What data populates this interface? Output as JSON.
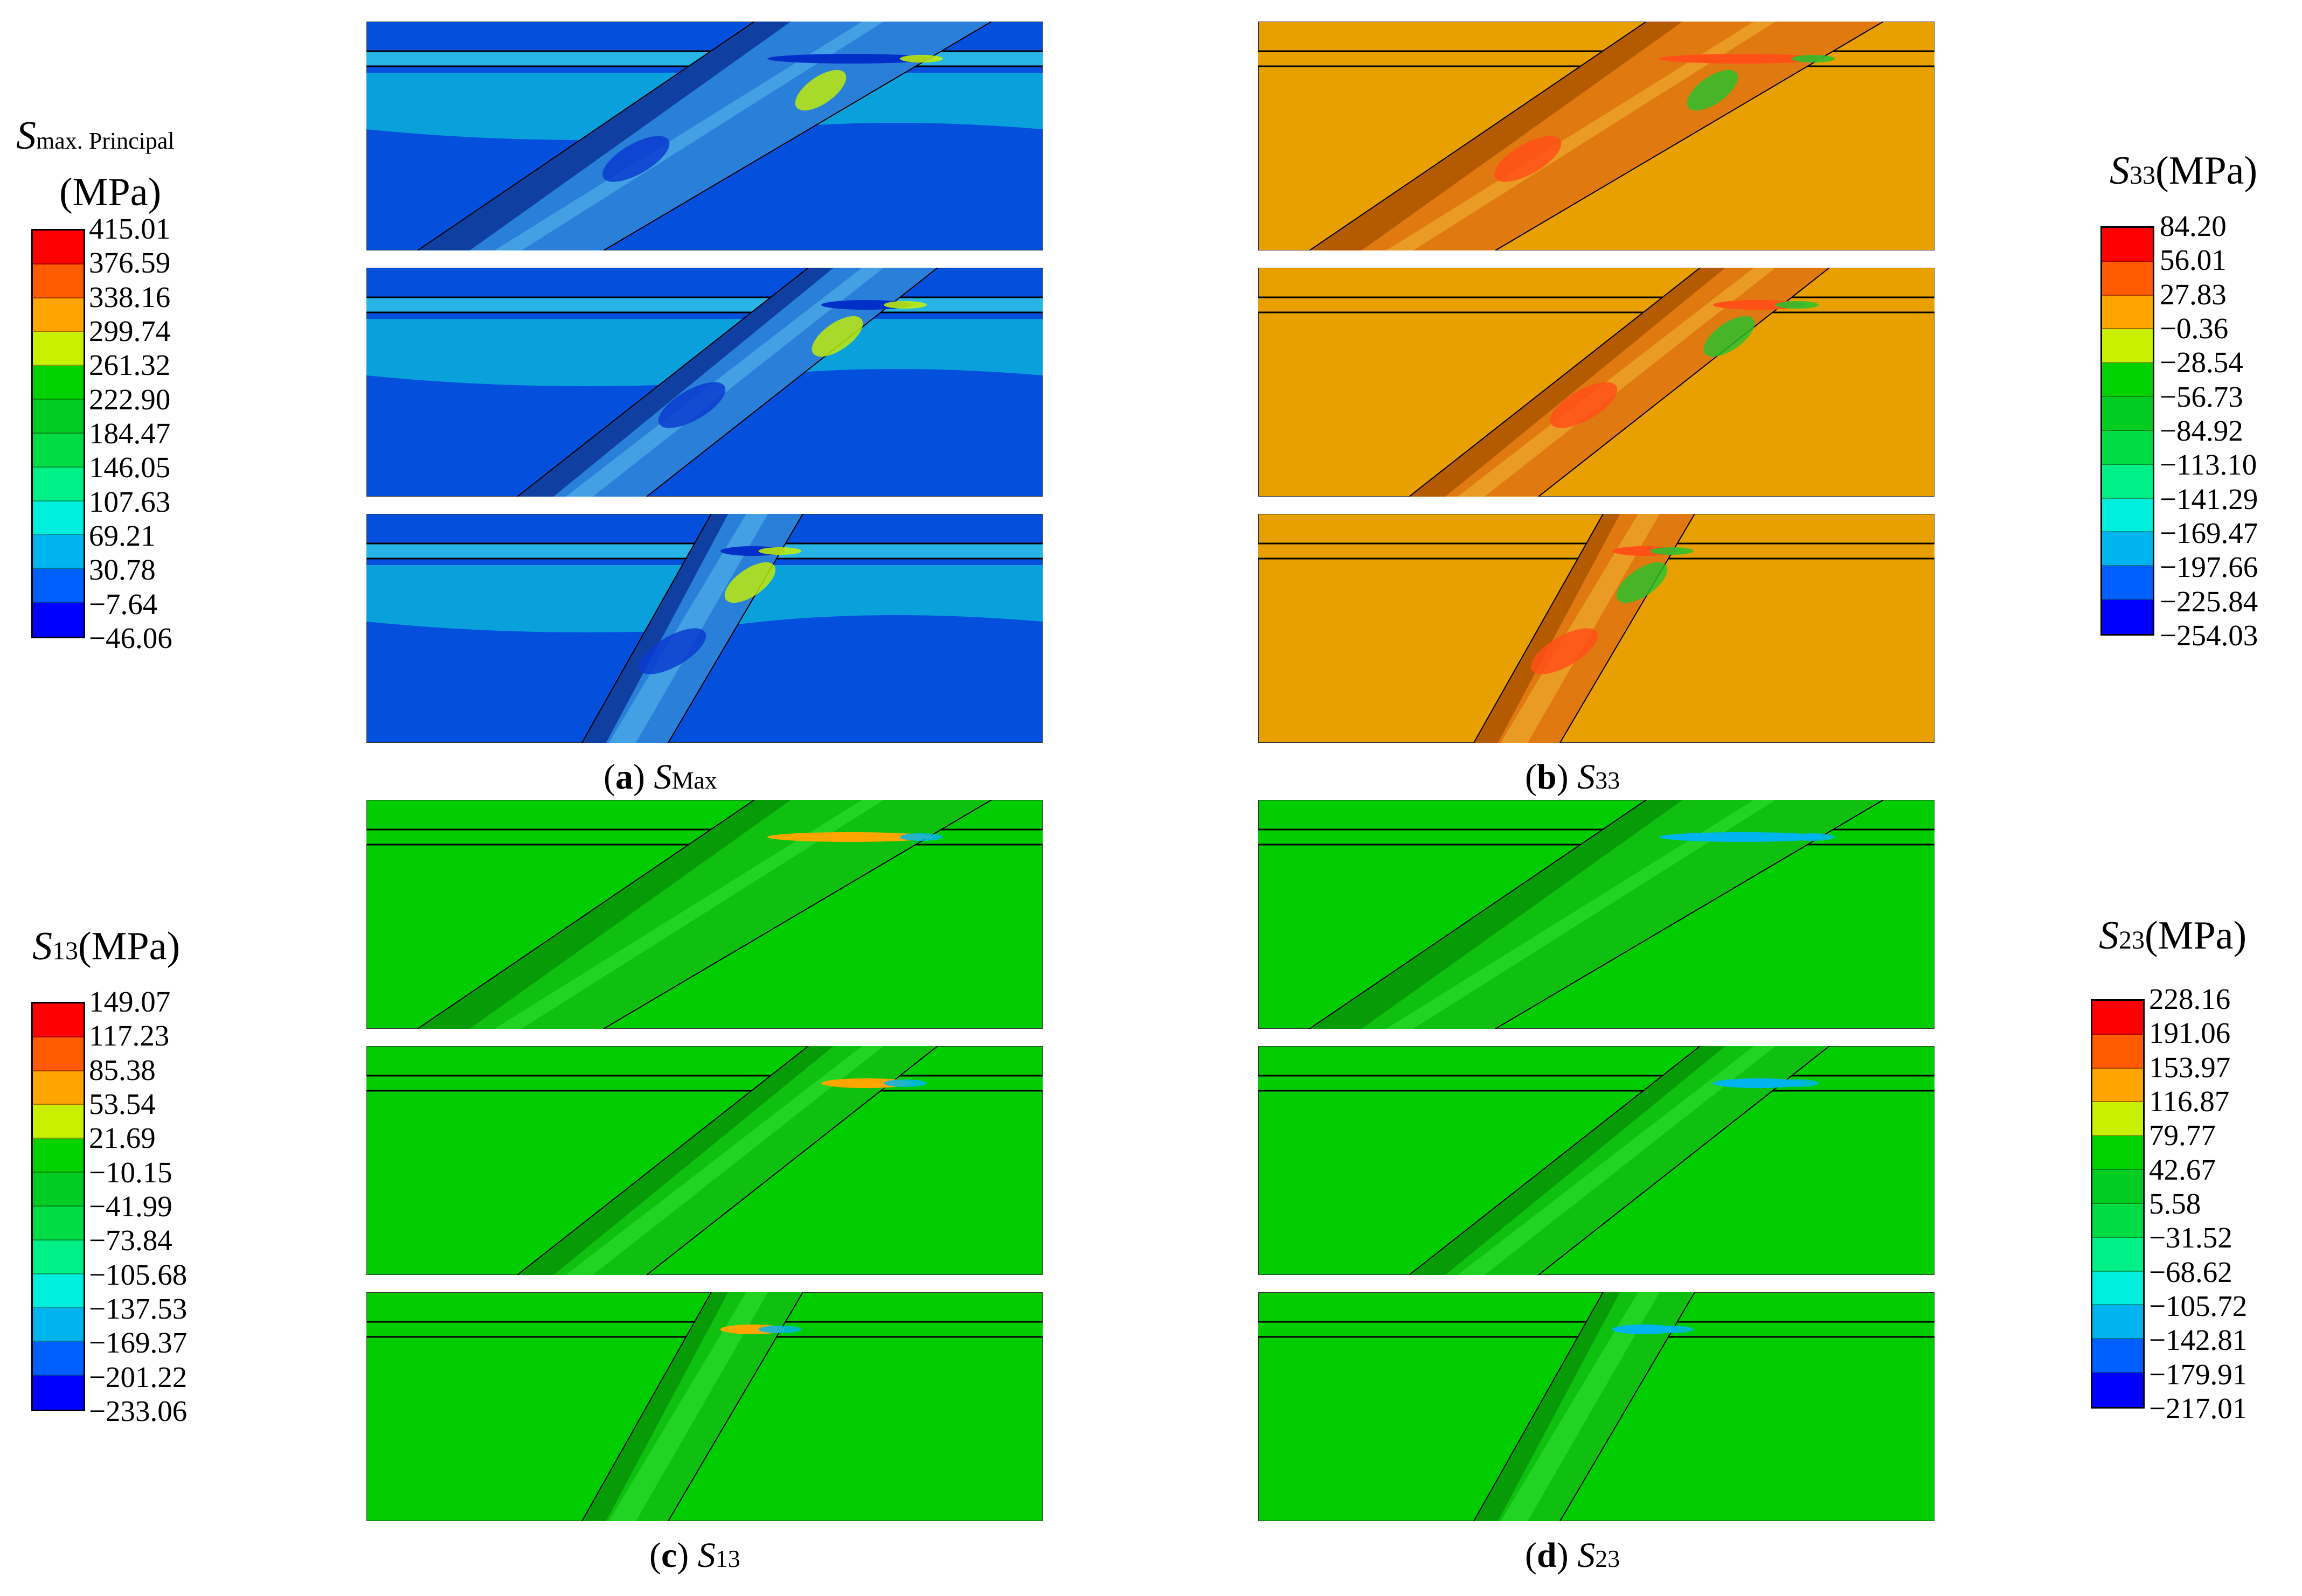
{
  "colors": {
    "red": "#ff0000",
    "orange_red": "#ff5a00",
    "orange": "#ffa500",
    "yellow": "#ffd800",
    "yellow_green": "#c8f000",
    "green": "#00d200",
    "green2": "#00cc22",
    "green3": "#00dd44",
    "teal_green": "#00f088",
    "cyan": "#00eede",
    "sky": "#00b4f0",
    "blue_mid": "#0060ff",
    "blue": "#0000ff",
    "smax_background": "#0450dc",
    "smax_band": "#0aa0dc",
    "smax_layer": "#28b4e6",
    "s33_background": "#e8a000",
    "s33_hot": "#ff5018",
    "s33_green": "#22c430",
    "shear_background": "#00cc00",
    "shear_dark": "#079c07"
  },
  "legends": {
    "smax": {
      "symbol": "S",
      "subscript": "max. Principal",
      "unit": "(MPa)",
      "ticks": [
        "415.01",
        "376.59",
        "338.16",
        "299.74",
        "261.32",
        "222.90",
        "184.47",
        "146.05",
        "107.63",
        "69.21",
        "30.78",
        "−7.64",
        "−46.06"
      ]
    },
    "s33": {
      "symbol": "S",
      "subscript": "33",
      "unit": "(MPa)",
      "ticks": [
        "84.20",
        "56.01",
        "27.83",
        "−0.36",
        "−28.54",
        "−56.73",
        "−84.92",
        "−113.10",
        "−141.29",
        "−169.47",
        "−197.66",
        "−225.84",
        "−254.03"
      ]
    },
    "s13": {
      "symbol": "S",
      "subscript": "13",
      "unit": "(MPa)",
      "ticks": [
        "149.07",
        "117.23",
        "85.38",
        "53.54",
        "21.69",
        "−10.15",
        "−41.99",
        "−73.84",
        "−105.68",
        "−137.53",
        "−169.37",
        "−201.22",
        "−233.06"
      ]
    },
    "s23": {
      "symbol": "S",
      "subscript": "23",
      "unit": "(MPa)",
      "ticks": [
        "228.16",
        "191.06",
        "153.97",
        "116.87",
        "79.77",
        "42.67",
        "5.58",
        "−31.52",
        "−68.62",
        "−105.72",
        "−142.81",
        "−179.91",
        "−217.01"
      ]
    }
  },
  "captions": {
    "a": {
      "letter": "a",
      "symbol": "S",
      "subscript": "Max"
    },
    "b": {
      "letter": "b",
      "symbol": "S",
      "subscript": "33"
    },
    "c": {
      "letter": "c",
      "symbol": "S",
      "subscript": "13"
    },
    "d": {
      "letter": "d",
      "symbol": "S",
      "subscript": "23"
    }
  }
}
